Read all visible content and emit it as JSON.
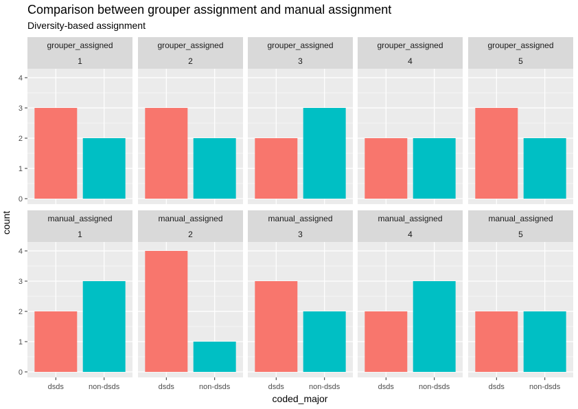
{
  "chart_data": {
    "type": "bar",
    "title": "Comparison between grouper assignment and manual assignment",
    "subtitle": "Diversity-based assignment",
    "xlabel": "coded_major",
    "ylabel": "count",
    "categories": [
      "dsds",
      "non-dsds"
    ],
    "ylim": [
      0,
      4
    ],
    "yticks": [
      0,
      1,
      2,
      3,
      4
    ],
    "grid": true,
    "fill_colors": {
      "dsds": "#F8766D",
      "non-dsds": "#00BFC4"
    },
    "facets": [
      {
        "row_label": "grouper_assigned",
        "col_label": "1",
        "values": [
          3,
          2
        ]
      },
      {
        "row_label": "grouper_assigned",
        "col_label": "2",
        "values": [
          3,
          2
        ]
      },
      {
        "row_label": "grouper_assigned",
        "col_label": "3",
        "values": [
          2,
          3
        ]
      },
      {
        "row_label": "grouper_assigned",
        "col_label": "4",
        "values": [
          2,
          2
        ]
      },
      {
        "row_label": "grouper_assigned",
        "col_label": "5",
        "values": [
          3,
          2
        ]
      },
      {
        "row_label": "manual_assigned",
        "col_label": "1",
        "values": [
          2,
          3
        ]
      },
      {
        "row_label": "manual_assigned",
        "col_label": "2",
        "values": [
          4,
          1
        ]
      },
      {
        "row_label": "manual_assigned",
        "col_label": "3",
        "values": [
          3,
          2
        ]
      },
      {
        "row_label": "manual_assigned",
        "col_label": "4",
        "values": [
          2,
          3
        ]
      },
      {
        "row_label": "manual_assigned",
        "col_label": "5",
        "values": [
          2,
          2
        ]
      }
    ]
  }
}
